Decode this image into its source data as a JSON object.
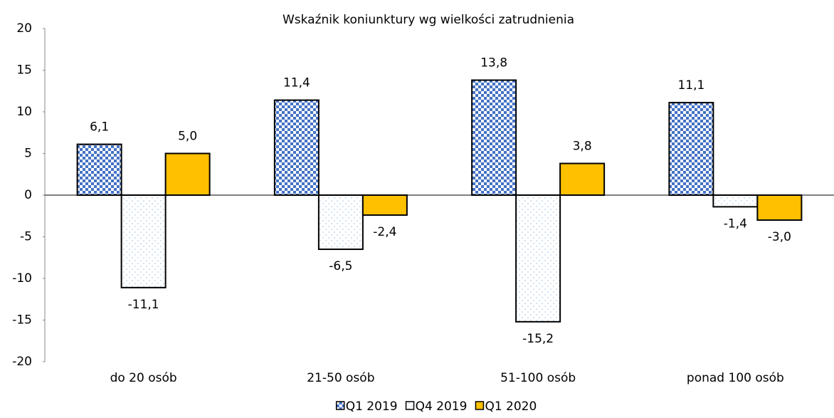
{
  "chart_data": {
    "type": "bar",
    "title": "Wskaźnik koniunktury wg wielkości zatrudnienia",
    "categories": [
      "do 20 osób",
      "21-50 osób",
      "51-100 osób",
      "ponad 100 osób"
    ],
    "series": [
      {
        "name": "Q1 2019",
        "color": "#4472c4",
        "pattern": "checker",
        "values": [
          6.1,
          11.4,
          13.8,
          11.1
        ],
        "value_labels": [
          "6,1",
          "11,4",
          "13,8",
          "11,1"
        ]
      },
      {
        "name": "Q4 2019",
        "color": "#9dc3e6",
        "pattern": "dots",
        "values": [
          -11.1,
          -6.5,
          -15.2,
          -1.4
        ],
        "value_labels": [
          "-11,1",
          "-6,5",
          "-15,2",
          "-1,4"
        ]
      },
      {
        "name": "Q1 2020",
        "color": "#ffc000",
        "pattern": "solid",
        "values": [
          5.0,
          -2.4,
          3.8,
          -3.0
        ],
        "value_labels": [
          "5,0",
          "-2,4",
          "3,8",
          "-3,0"
        ]
      }
    ],
    "ylim": [
      -20,
      20
    ],
    "yticks": [
      -20,
      -15,
      -10,
      -5,
      0,
      5,
      10,
      15,
      20
    ],
    "grid": false,
    "legend": "bottom"
  }
}
